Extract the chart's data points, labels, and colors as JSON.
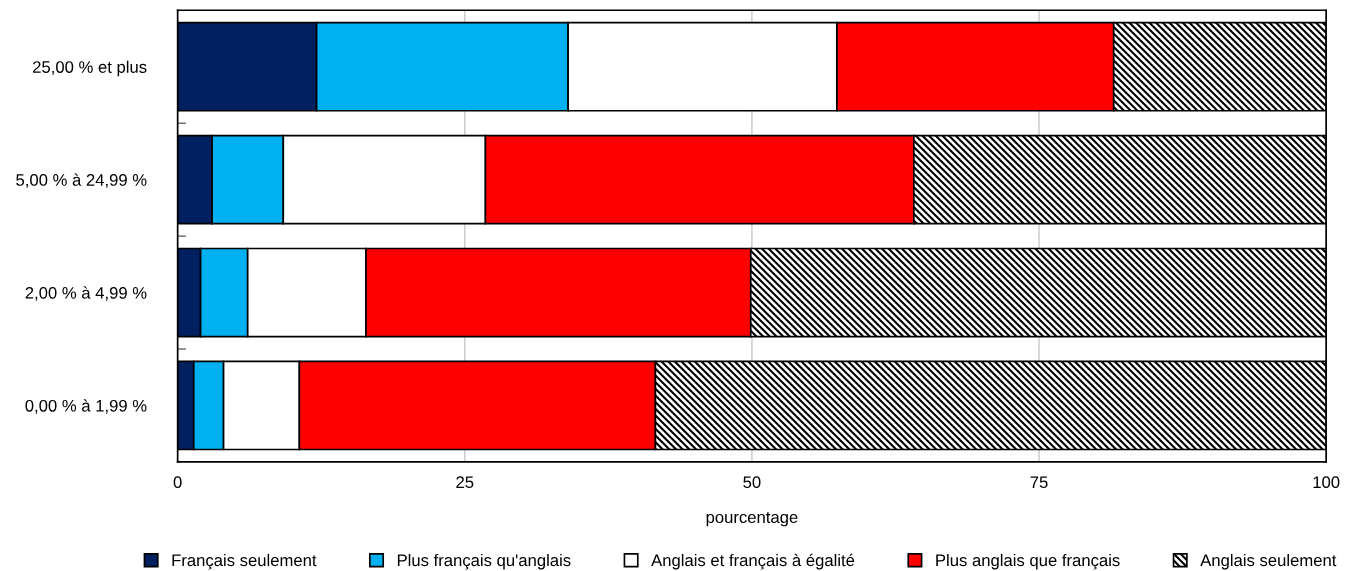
{
  "chart_data": {
    "type": "bar",
    "orientation": "horizontal",
    "stacked": true,
    "xlabel": "pourcentage",
    "categories": [
      "25,00 % et plus",
      "5,00 % à 24,99 %",
      "2,00 % à 4,99 %",
      "0,00 % à 1,99 %"
    ],
    "series": [
      {
        "name": "Français seulement",
        "color": "#002060",
        "values": [
          12.1,
          3.0,
          2.0,
          1.4
        ]
      },
      {
        "name": "Plus français qu'anglais",
        "color": "#00b0f0",
        "values": [
          21.9,
          6.2,
          4.1,
          2.6
        ]
      },
      {
        "name": "Anglais et français à égalité",
        "color": "#ffffff",
        "values": [
          23.4,
          17.6,
          10.3,
          6.6
        ]
      },
      {
        "name": "Plus anglais que français",
        "color": "#ff0000",
        "values": [
          24.1,
          37.3,
          33.5,
          31.0
        ]
      },
      {
        "name": "Anglais seulement",
        "color": "#000000",
        "values": [
          18.5,
          35.9,
          50.1,
          58.4
        ]
      }
    ],
    "xlim": [
      0,
      100
    ],
    "xticks": [
      0,
      25,
      50,
      75,
      100
    ],
    "grid": "x",
    "legend": "bottom"
  }
}
